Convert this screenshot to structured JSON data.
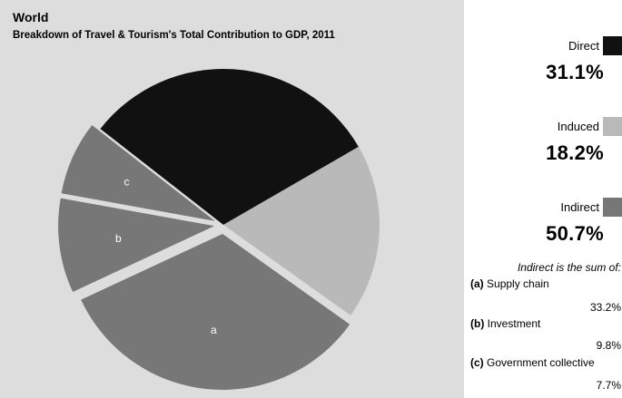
{
  "title": "World",
  "subtitle": "Breakdown of Travel & Tourism's Total Contribution to GDP, 2011",
  "colors": {
    "direct": "#111111",
    "induced": "#b9b9b9",
    "indirect": "#777777",
    "background": "#dddddd"
  },
  "chart_data": {
    "type": "pie",
    "title": "World",
    "subtitle": "Breakdown of Travel & Tourism's Total Contribution to GDP, 2011",
    "slices": [
      {
        "name": "Direct",
        "value": 31.1,
        "color": "#111111"
      },
      {
        "name": "Induced",
        "value": 18.2,
        "color": "#b9b9b9"
      },
      {
        "name": "Indirect",
        "value": 50.7,
        "color": "#777777",
        "breakdown": [
          {
            "letter": "a",
            "name": "Supply chain",
            "value": 33.2
          },
          {
            "letter": "b",
            "name": "Investment",
            "value": 9.8
          },
          {
            "letter": "c",
            "name": "Government collective",
            "value": 7.7
          }
        ]
      }
    ]
  },
  "legend": {
    "direct": {
      "name": "Direct",
      "pct": "31.1%"
    },
    "induced": {
      "name": "Induced",
      "pct": "18.2%"
    },
    "indirect": {
      "name": "Indirect",
      "pct": "50.7%"
    }
  },
  "breakdown_note": "Indirect is the sum of:",
  "breakdown": [
    {
      "letter": "(a)",
      "name": "Supply chain",
      "value": "33.2%"
    },
    {
      "letter": "(b)",
      "name": "Investment",
      "value": "9.8%"
    },
    {
      "letter": "(c)",
      "name": "Government collective",
      "value": "7.7%"
    }
  ]
}
